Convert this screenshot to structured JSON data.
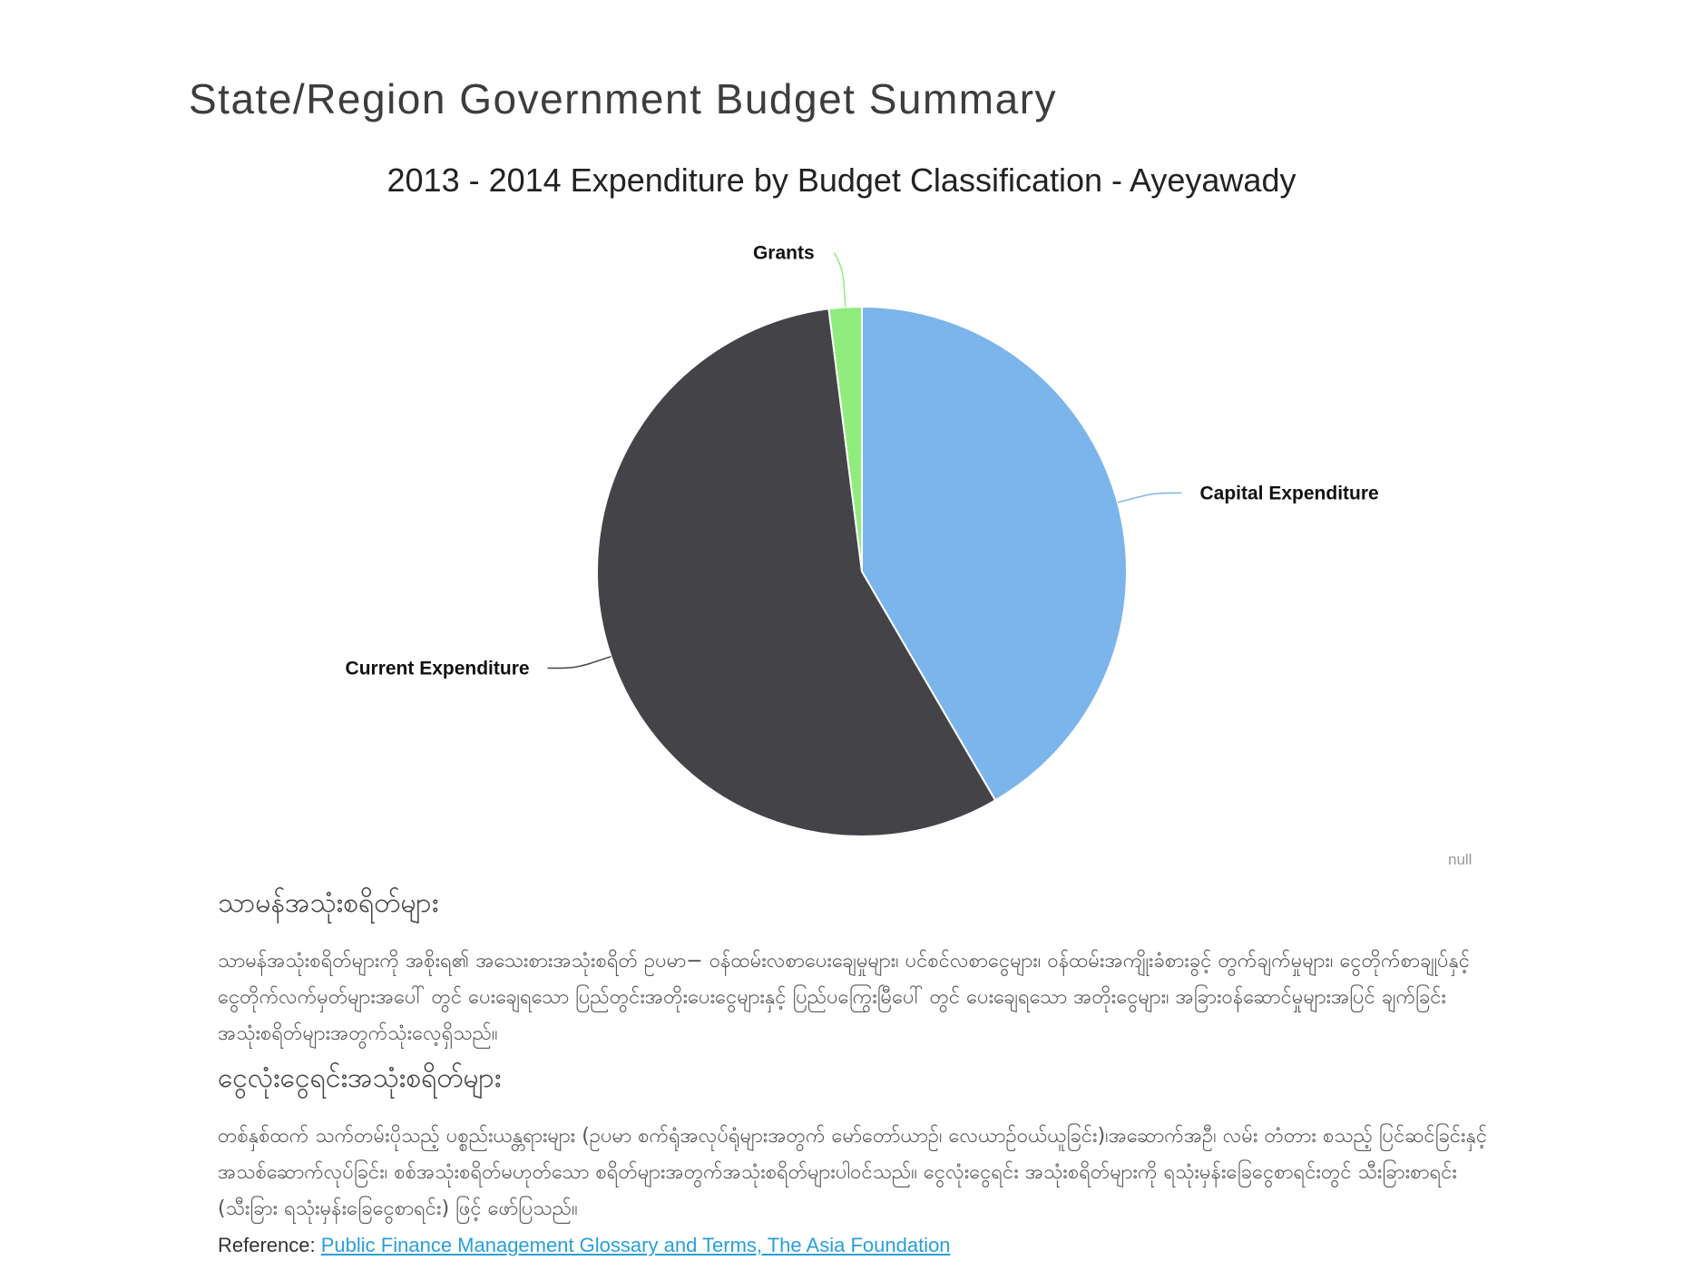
{
  "page": {
    "title": "State/Region Government Budget Summary"
  },
  "chart_data": {
    "type": "pie",
    "title": "2013 - 2014 Expenditure by Budget Classification - Ayeyawady",
    "slices": [
      {
        "label": "Capital Expenditure",
        "value": 41.6,
        "color": "#7cb5ec"
      },
      {
        "label": "Current Expenditure",
        "value": 56.4,
        "color": "#434348"
      },
      {
        "label": "Grants",
        "value": 2.0,
        "color": "#90ed7d"
      }
    ],
    "credit": "null"
  },
  "sections": [
    {
      "heading": "သာမန်အသုံးစရိတ်များ",
      "body": "သာမန်အသုံးစရိတ်များကို အစိုးရ၏ အသေးစားအသုံးစရိတ် ဥပမာ− ဝန်ထမ်းလစာပေးချေမှုများ၊ ပင်စင်လစာငွေများ၊ ဝန်ထမ်းအကျိုးခံစားခွင့် တွက်ချက်မှုများ၊ ငွေတိုက်စာချုပ်နှင့် ငွေတိုက်လက်မှတ်များအပေါ် တွင် ပေးချေရသော ပြည်တွင်းအတိုးပေးငွေများနှင့် ပြည်ပကြွေးမြီပေါ် တွင် ပေးချေရသော အတိုးငွေများ၊ အခြားဝန်ဆောင်မှုများအပြင် ချက်ခြင်းအသုံးစရိတ်များအတွက်သုံးလေ့ရှိသည်။"
    },
    {
      "heading": "ငွေလုံးငွေရင်းအသုံးစရိတ်များ",
      "body": "တစ်နှစ်ထက် သက်တမ်းပိုသည့် ပစ္စည်းယန္တရားများ (ဥပမာ စက်ရုံအလုပ်ရုံများအတွက် မော်တော်ယာဉ်၊ လေယာဉ်ဝယ်ယူခြင်း)၊အဆောက်အဦ၊ လမ်း တံတား စသည့် ပြင်ဆင်ခြင်းနှင့် အသစ်ဆောက်လုပ်ခြင်း၊ စစ်အသုံးစရိတ်မဟုတ်သော စရိတ်များအတွက်အသုံးစရိတ်များပါဝင်သည်။ ငွေလုံးငွေရင်း အသုံးစရိတ်များကို ရသုံးမှန်းခြေငွေစာရင်းတွင် သီးခြားစာရင်း (သီးခြား ရသုံးမှန်းခြေငွေစာရင်း) ဖြင့် ဖော်ပြသည်။"
    }
  ],
  "reference": {
    "label": "Reference:",
    "link_text": "Public Finance Management Glossary and Terms, The Asia Foundation"
  }
}
